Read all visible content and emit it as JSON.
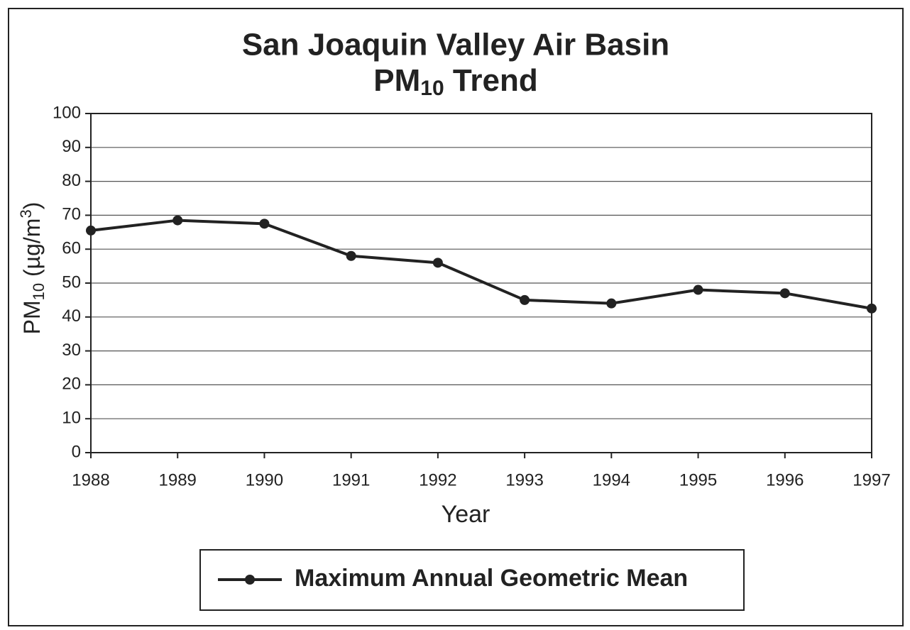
{
  "chart_data": {
    "type": "line",
    "title": [
      "San Joaquin Valley Air Basin",
      "PM",
      "10",
      " Trend"
    ],
    "xlabel": "Year",
    "ylabel": [
      "PM",
      "10",
      " (µg/m",
      "3",
      ")"
    ],
    "x": [
      1988,
      1989,
      1990,
      1991,
      1992,
      1993,
      1994,
      1995,
      1996,
      1997
    ],
    "series": [
      {
        "name": "Maximum Annual Geometric Mean",
        "color": "#222222",
        "values": [
          65.5,
          68.5,
          67.5,
          58,
          56,
          45,
          44,
          48,
          47,
          42.5
        ]
      }
    ],
    "xlim": [
      1988,
      1997
    ],
    "xticks": [
      1988,
      1989,
      1990,
      1991,
      1992,
      1993,
      1994,
      1995,
      1996,
      1997
    ],
    "ylim": [
      0,
      100
    ],
    "yticks": [
      0,
      10,
      20,
      30,
      40,
      50,
      60,
      70,
      80,
      90,
      100
    ],
    "grid": true,
    "legend": "bottom"
  }
}
